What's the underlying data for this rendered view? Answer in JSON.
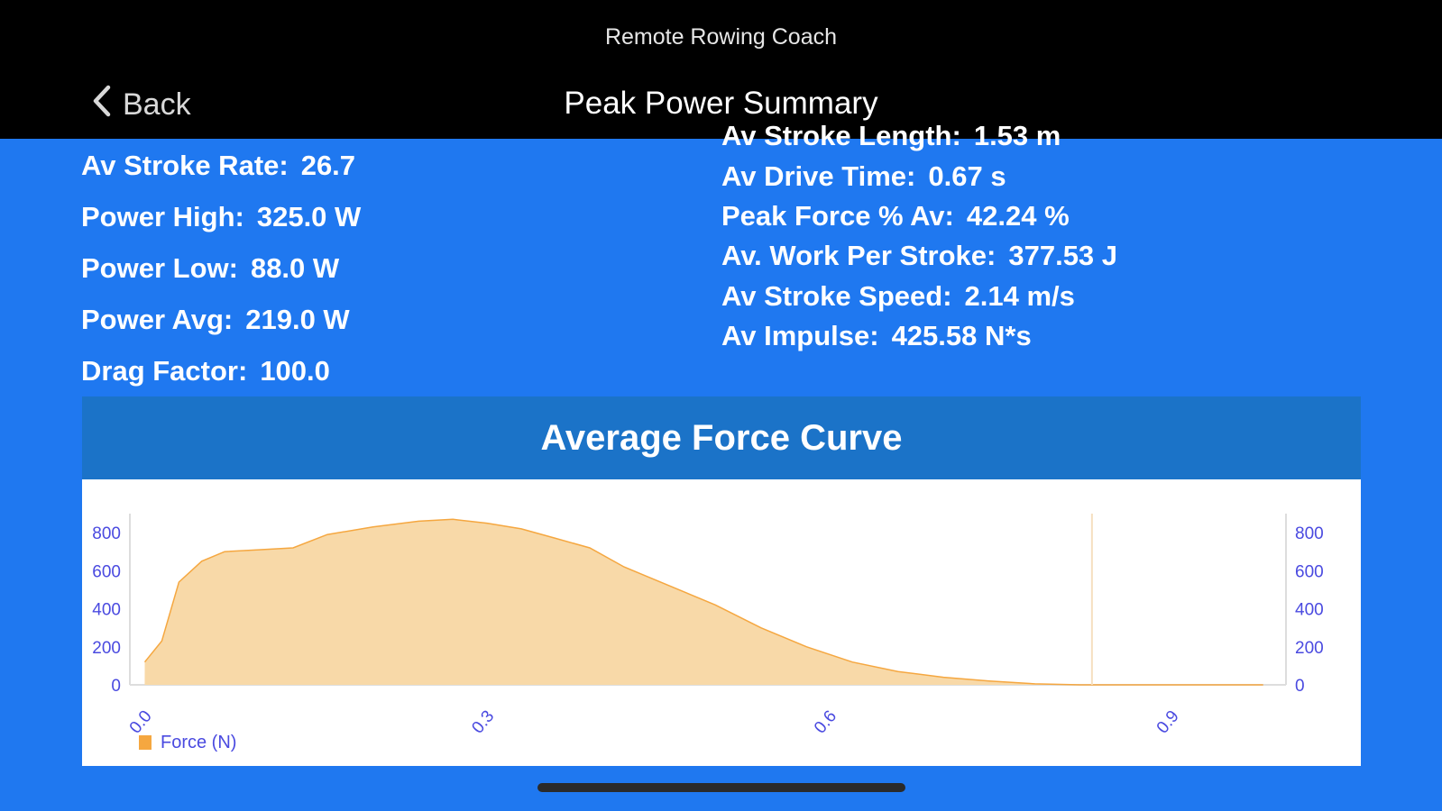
{
  "app": {
    "title": "Remote Rowing Coach"
  },
  "nav": {
    "back_label": "Back",
    "title": "Peak Power Summary"
  },
  "stats_left": [
    {
      "label": "Av Stroke Rate:",
      "value": "26.7"
    },
    {
      "label": "Power High:",
      "value": "325.0 W"
    },
    {
      "label": "Power Low:",
      "value": "88.0 W"
    },
    {
      "label": "Power Avg:",
      "value": "219.0 W"
    },
    {
      "label": "Drag Factor:",
      "value": "100.0"
    }
  ],
  "stats_right": [
    {
      "label": "Av Stroke Length:",
      "value": "1.53 m"
    },
    {
      "label": "Av Drive Time:",
      "value": "0.67 s"
    },
    {
      "label": "Peak Force % Av:",
      "value": "42.24 %"
    },
    {
      "label": "Av. Work Per Stroke:",
      "value": "377.53 J"
    },
    {
      "label": "Av Stroke Speed:",
      "value": "2.14 m/s"
    },
    {
      "label": "Av Impulse:",
      "value": "425.58 N*s"
    }
  ],
  "chart_data": {
    "type": "area",
    "title": "Average Force Curve",
    "xlabel": "",
    "ylabel": "",
    "xlim": [
      -0.013,
      1.0
    ],
    "ylim": [
      0,
      900
    ],
    "x_ticks": [
      "0.0",
      "0.3",
      "0.6",
      "0.9"
    ],
    "y_ticks": [
      "0",
      "200",
      "400",
      "600",
      "800"
    ],
    "series": [
      {
        "name": "Force (N)",
        "color": "#f5a740",
        "fill": "#f8d9a8",
        "x": [
          0.0,
          0.015,
          0.03,
          0.05,
          0.07,
          0.1,
          0.13,
          0.16,
          0.2,
          0.24,
          0.27,
          0.3,
          0.33,
          0.36,
          0.39,
          0.42,
          0.46,
          0.5,
          0.54,
          0.58,
          0.62,
          0.66,
          0.7,
          0.74,
          0.78,
          0.82,
          0.86,
          0.9,
          0.94,
          0.98
        ],
        "values": [
          120,
          230,
          540,
          650,
          700,
          710,
          720,
          790,
          830,
          860,
          870,
          850,
          820,
          770,
          720,
          620,
          520,
          420,
          300,
          200,
          120,
          70,
          40,
          20,
          5,
          0,
          0,
          0,
          0,
          0
        ]
      }
    ],
    "marker_line_x": 0.83,
    "legend_position": "bottom-left"
  }
}
